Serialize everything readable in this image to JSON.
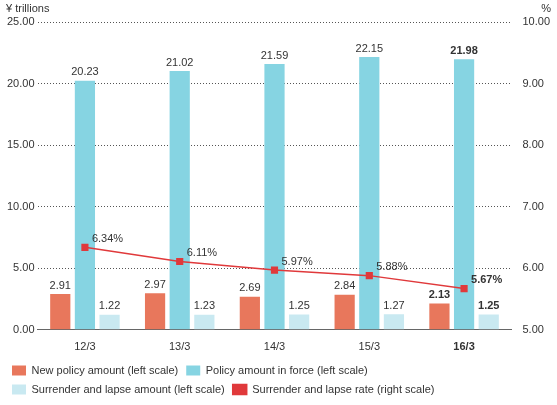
{
  "chart_data": {
    "type": "bar",
    "y_label": "¥ trillions",
    "y2_label": "%",
    "categories": [
      "12/3",
      "13/3",
      "14/3",
      "15/3",
      "16/3"
    ],
    "series": [
      {
        "name": "New policy amount (left scale)",
        "color": "#e8775c",
        "values": [
          2.91,
          2.97,
          2.69,
          2.84,
          2.13
        ]
      },
      {
        "name": "Policy amount in force (left scale)",
        "color": "#86d4e2",
        "values": [
          20.23,
          21.02,
          21.59,
          22.15,
          21.98
        ]
      },
      {
        "name": "Surrender and lapse amount (left scale)",
        "color": "#c9e9f1",
        "values": [
          1.22,
          1.23,
          1.25,
          1.27,
          1.25
        ]
      },
      {
        "name": "Surrender and lapse rate (right scale)",
        "color": "#e0393b",
        "type": "line",
        "axis": "y2",
        "marker": "square",
        "values": [
          6.34,
          6.11,
          5.97,
          5.88,
          5.67
        ],
        "value_labels": [
          "6.34%",
          "6.11%",
          "5.97%",
          "5.88%",
          "5.67%"
        ]
      }
    ],
    "ylim": [
      0,
      25
    ],
    "yticks": [
      {
        "value": 0,
        "label": "0.00"
      },
      {
        "value": 5,
        "label": "5.00"
      },
      {
        "value": 10,
        "label": "10.00"
      },
      {
        "value": 15,
        "label": "15.00"
      },
      {
        "value": 20,
        "label": "20.00"
      },
      {
        "value": 25,
        "label": "25.00"
      }
    ],
    "y2lim": [
      5,
      10
    ],
    "y2ticks": [
      {
        "value": 5,
        "label": "5.00"
      },
      {
        "value": 6,
        "label": "6.00"
      },
      {
        "value": 7,
        "label": "7.00"
      },
      {
        "value": 8,
        "label": "8.00"
      },
      {
        "value": 9,
        "label": "9.00"
      },
      {
        "value": 10,
        "label": "10.00"
      }
    ],
    "grid": true,
    "legend": "bottom",
    "data_labels": true
  }
}
